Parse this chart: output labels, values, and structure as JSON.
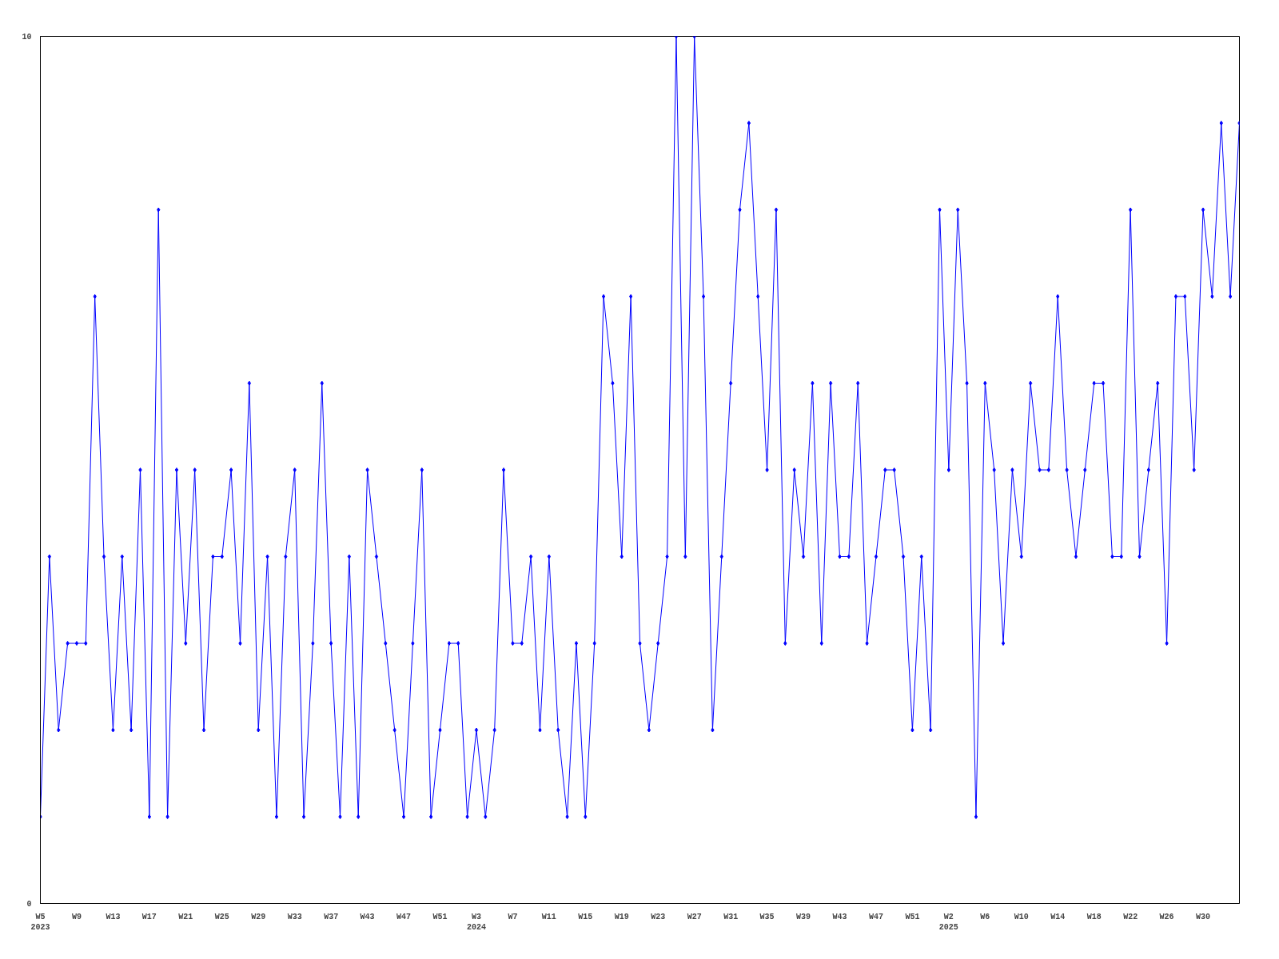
{
  "chart_data": {
    "type": "line",
    "categories": [
      "W5\n2023",
      null,
      null,
      null,
      "W9",
      null,
      null,
      null,
      "W13",
      null,
      null,
      null,
      "W17",
      null,
      null,
      null,
      "W21",
      null,
      null,
      null,
      "W25",
      null,
      null,
      null,
      "W29",
      null,
      null,
      null,
      "W33",
      null,
      null,
      null,
      "W37",
      null,
      null,
      null,
      "W43",
      null,
      null,
      null,
      "W47",
      null,
      null,
      null,
      "W51",
      null,
      null,
      null,
      "W3\n2024",
      null,
      null,
      null,
      "W7",
      null,
      null,
      null,
      "W11",
      null,
      null,
      null,
      "W15",
      null,
      null,
      null,
      "W19",
      null,
      null,
      null,
      "W23",
      null,
      null,
      null,
      "W27",
      null,
      null,
      null,
      "W31",
      null,
      null,
      null,
      "W35",
      null,
      null,
      null,
      "W39",
      null,
      null,
      null,
      "W43",
      null,
      null,
      null,
      "W47",
      null,
      null,
      null,
      "W51",
      null,
      null,
      null,
      "W2\n2025",
      null,
      null,
      null,
      "W6",
      null,
      null,
      null,
      "W10",
      null,
      null,
      null,
      "W14",
      null,
      null,
      null,
      "W18",
      null,
      null,
      null,
      "W22",
      null,
      null,
      null,
      "W26",
      null,
      null,
      null,
      "W30",
      null,
      null,
      null,
      null
    ],
    "series": [
      {
        "color": "#0000ff",
        "values": [
          1,
          4,
          2,
          3,
          3,
          3,
          7,
          4,
          2,
          4,
          2,
          5,
          1,
          8,
          1,
          5,
          3,
          5,
          2,
          4,
          4,
          5,
          3,
          6,
          2,
          4,
          1,
          4,
          5,
          1,
          3,
          6,
          3,
          1,
          4,
          1,
          5,
          4,
          3,
          2,
          1,
          3,
          5,
          1,
          2,
          3,
          3,
          1,
          2,
          1,
          2,
          5,
          3,
          3,
          4,
          2,
          4,
          2,
          1,
          3,
          1,
          3,
          7,
          6,
          4,
          7,
          3,
          2,
          3,
          4,
          10,
          4,
          10,
          7,
          2,
          4,
          6,
          8,
          9,
          7,
          5,
          8,
          3,
          5,
          4,
          6,
          3,
          6,
          4,
          4,
          6,
          3,
          4,
          5,
          5,
          4,
          2,
          4,
          2,
          8,
          5,
          8,
          6,
          1,
          6,
          5,
          3,
          5,
          4,
          6,
          5,
          5,
          7,
          5,
          4,
          5,
          6,
          6,
          4,
          4,
          8,
          4,
          5,
          6,
          3,
          7,
          7,
          5,
          8,
          7,
          9,
          7,
          9
        ]
      }
    ],
    "ylim": [
      0,
      10
    ],
    "yticks": [
      0,
      10
    ],
    "grid": false,
    "marker": "diamond",
    "line_style": "solid"
  }
}
